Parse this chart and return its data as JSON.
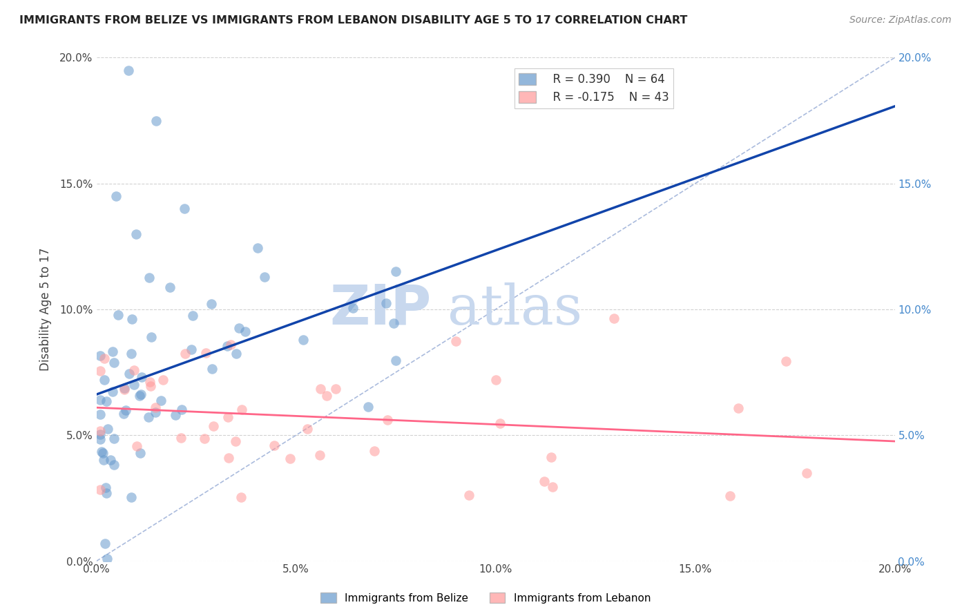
{
  "title": "IMMIGRANTS FROM BELIZE VS IMMIGRANTS FROM LEBANON DISABILITY AGE 5 TO 17 CORRELATION CHART",
  "source": "Source: ZipAtlas.com",
  "ylabel": "Disability Age 5 to 17",
  "x_tick_labels": [
    "0.0%",
    "5.0%",
    "10.0%",
    "15.0%",
    "20.0%"
  ],
  "x_tick_values": [
    0.0,
    0.05,
    0.1,
    0.15,
    0.2
  ],
  "y_tick_labels_left": [
    "0.0%",
    "5.0%",
    "10.0%",
    "15.0%",
    "20.0%"
  ],
  "y_tick_labels_right": [
    "0.0%",
    "5.0%",
    "10.0%",
    "15.0%",
    "20.0%"
  ],
  "y_tick_values": [
    0.0,
    0.05,
    0.1,
    0.15,
    0.2
  ],
  "xlim": [
    0.0,
    0.2
  ],
  "ylim": [
    0.0,
    0.2
  ],
  "belize_color": "#6699CC",
  "lebanon_color": "#FF9999",
  "belize_line_color": "#1144AA",
  "lebanon_line_color": "#FF6688",
  "diagonal_color": "#AABBDD",
  "legend_belize_r": "R = 0.390",
  "legend_belize_n": "N = 64",
  "legend_lebanon_r": "R = -0.175",
  "legend_lebanon_n": "N = 43",
  "title_color": "#222222",
  "source_color": "#888888",
  "right_axis_color": "#4488CC",
  "grid_color": "#CCCCCC",
  "watermark_zip": "ZIP",
  "watermark_atlas": "atlas",
  "watermark_color_zip": "#C8D8EE",
  "watermark_color_atlas": "#C8D8EE",
  "legend_bottom_belize": "Immigrants from Belize",
  "legend_bottom_lebanon": "Immigrants from Lebanon"
}
